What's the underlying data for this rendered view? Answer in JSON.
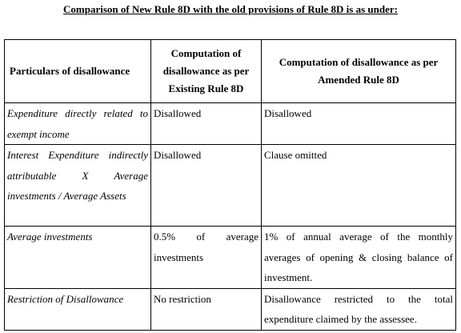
{
  "title": "Comparison of New Rule 8D with the old provisions of Rule 8D is as under:",
  "table": {
    "headers": [
      "Particulars of disallowance",
      "Computation of disallowance as per Existing Rule 8D",
      "Computation of disallowance as per Amended Rule 8D"
    ],
    "rows": [
      {
        "particular": "Expenditure directly related to exempt income",
        "existing": "Disallowed",
        "amended": "Disallowed"
      },
      {
        "particular": "Interest Expenditure indirectly attributable X Average investments / Average Assets",
        "existing": "Disallowed",
        "amended": "Clause omitted"
      },
      {
        "particular": "Average investments",
        "existing": "0.5% of average investments",
        "amended": "1% of annual average of the monthly averages of opening & closing balance of investment."
      },
      {
        "particular": "Restriction of Disallowance",
        "existing": "No restriction",
        "amended": "Disallowance restricted to the total expenditure claimed by the assessee."
      }
    ]
  }
}
